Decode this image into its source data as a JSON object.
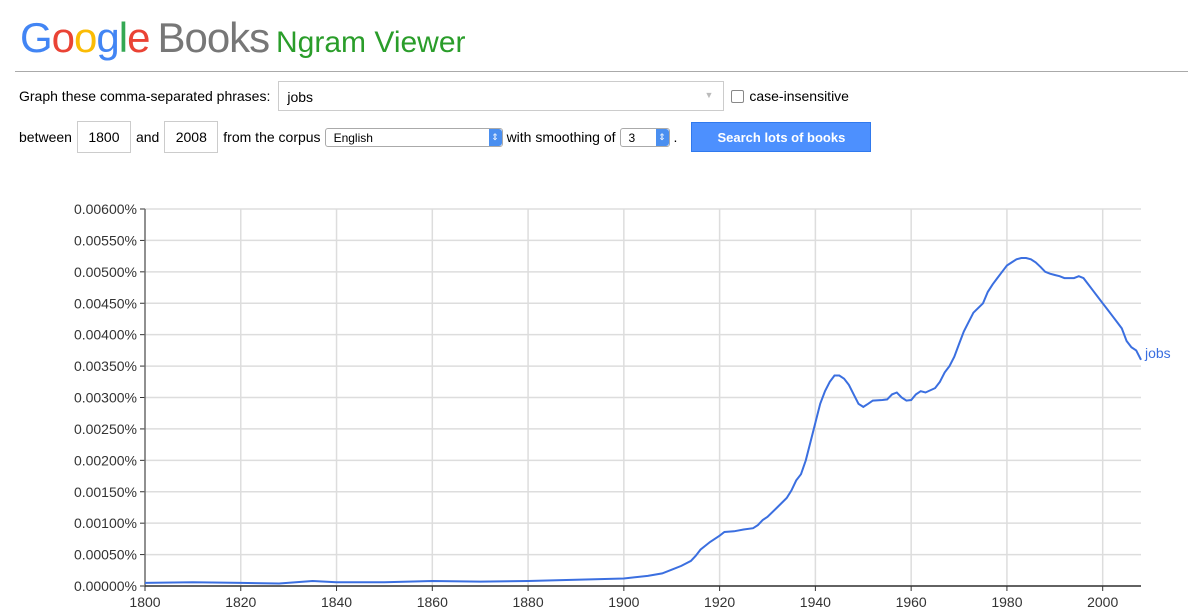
{
  "header": {
    "logo_letters": [
      "G",
      "o",
      "o",
      "g",
      "l",
      "e"
    ],
    "books": "Books",
    "title": "Ngram Viewer"
  },
  "form": {
    "phrases_label": "Graph these comma-separated phrases:",
    "phrases_value": "jobs",
    "case_insensitive_label": "case-insensitive",
    "case_insensitive_checked": false,
    "between_label": "between",
    "start_year": "1800",
    "and_label": "and",
    "end_year": "2008",
    "corpus_label": "from the corpus",
    "corpus_value": "English",
    "smoothing_label": "with smoothing of",
    "smoothing_value": "3",
    "period": ".",
    "search_button": "Search lots of books"
  },
  "chart_data": {
    "type": "line",
    "title": "",
    "xlabel": "",
    "ylabel": "",
    "xlim": [
      1800,
      2008
    ],
    "ylim": [
      0,
      0.006
    ],
    "x_ticks": [
      "1800",
      "1820",
      "1840",
      "1860",
      "1880",
      "1900",
      "1920",
      "1940",
      "1960",
      "1980",
      "2000"
    ],
    "y_ticks": [
      "0.00000%",
      "0.00050%",
      "0.00100%",
      "0.00150%",
      "0.00200%",
      "0.00250%",
      "0.00300%",
      "0.00350%",
      "0.00400%",
      "0.00450%",
      "0.00500%",
      "0.00550%",
      "0.00600%"
    ],
    "grid": true,
    "line_color": "#3b6fe0",
    "series": [
      {
        "name": "jobs",
        "x": [
          1800,
          1810,
          1820,
          1828,
          1835,
          1840,
          1850,
          1860,
          1870,
          1880,
          1890,
          1900,
          1905,
          1908,
          1910,
          1912,
          1914,
          1915,
          1916,
          1918,
          1920,
          1921,
          1923,
          1925,
          1927,
          1928,
          1929,
          1930,
          1932,
          1934,
          1935,
          1936,
          1937,
          1938,
          1939,
          1940,
          1941,
          1942,
          1943,
          1944,
          1945,
          1946,
          1947,
          1948,
          1949,
          1950,
          1951,
          1952,
          1954,
          1955,
          1956,
          1957,
          1958,
          1959,
          1960,
          1961,
          1962,
          1963,
          1965,
          1966,
          1967,
          1968,
          1969,
          1970,
          1971,
          1972,
          1973,
          1975,
          1976,
          1977,
          1978,
          1979,
          1980,
          1981,
          1982,
          1983,
          1984,
          1985,
          1986,
          1987,
          1988,
          1989,
          1990,
          1991,
          1992,
          1994,
          1995,
          1996,
          1997,
          1998,
          1999,
          2000,
          2001,
          2002,
          2003,
          2004,
          2005,
          2006,
          2007,
          2008
        ],
        "values": [
          5e-05,
          6e-05,
          5e-05,
          4e-05,
          8e-05,
          6e-05,
          6e-05,
          8e-05,
          7e-05,
          8e-05,
          0.0001,
          0.00012,
          0.00016,
          0.0002,
          0.00026,
          0.00032,
          0.0004,
          0.00048,
          0.00058,
          0.0007,
          0.0008,
          0.00086,
          0.00087,
          0.0009,
          0.00092,
          0.00097,
          0.00105,
          0.0011,
          0.00125,
          0.0014,
          0.00152,
          0.00168,
          0.00178,
          0.002,
          0.0023,
          0.0026,
          0.0029,
          0.0031,
          0.00325,
          0.00335,
          0.00335,
          0.0033,
          0.0032,
          0.00305,
          0.0029,
          0.00285,
          0.0029,
          0.00295,
          0.00296,
          0.00297,
          0.00305,
          0.00308,
          0.003,
          0.00295,
          0.00296,
          0.00305,
          0.0031,
          0.00308,
          0.00315,
          0.00325,
          0.0034,
          0.0035,
          0.00365,
          0.00385,
          0.00405,
          0.0042,
          0.00435,
          0.0045,
          0.00468,
          0.0048,
          0.0049,
          0.005,
          0.0051,
          0.00515,
          0.0052,
          0.00522,
          0.00522,
          0.0052,
          0.00515,
          0.00508,
          0.005,
          0.00497,
          0.00495,
          0.00493,
          0.0049,
          0.0049,
          0.00493,
          0.0049,
          0.0048,
          0.0047,
          0.0046,
          0.0045,
          0.0044,
          0.0043,
          0.0042,
          0.0041,
          0.0039,
          0.0038,
          0.00375,
          0.0036
        ]
      }
    ]
  }
}
